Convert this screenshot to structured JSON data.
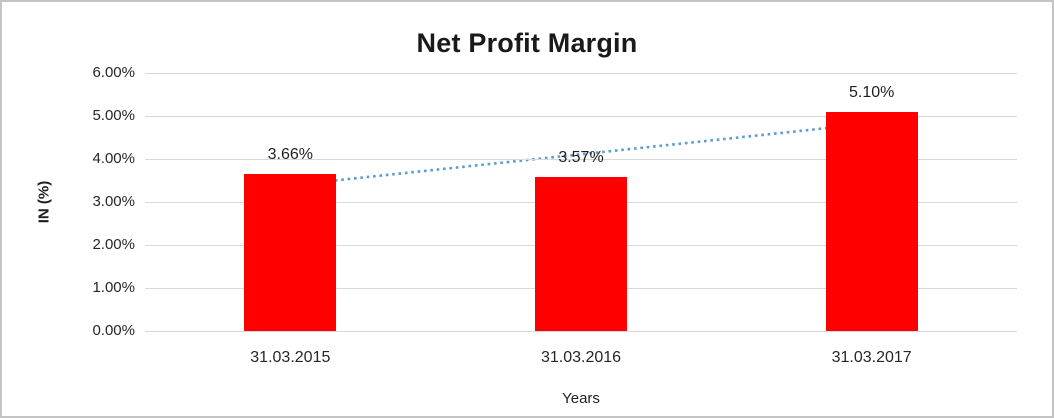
{
  "chart_data": {
    "type": "bar",
    "title": "Net Profit Margin",
    "xlabel": "Years",
    "ylabel": "IN (%)",
    "categories": [
      "31.03.2015",
      "31.03.2016",
      "31.03.2017"
    ],
    "values": [
      3.66,
      3.57,
      5.1
    ],
    "data_labels": [
      "3.66%",
      "3.57%",
      "5.10%"
    ],
    "yticks": {
      "values": [
        6,
        5,
        4,
        3,
        2,
        1,
        0
      ],
      "labels": [
        "6.00%",
        "5.00%",
        "4.00%",
        "3.00%",
        "2.00%",
        "1.00%",
        "0.00%"
      ]
    },
    "ylim": [
      0,
      6
    ],
    "grid": true,
    "legend": "none",
    "trendline": {
      "style": "dotted",
      "start_value": 3.39,
      "end_value": 4.83
    },
    "colors": {
      "bar": "#ff0000",
      "trendline": "#5b9bd5",
      "gridline": "#d9d9d9",
      "text": "#1f1f1f",
      "frame_border": "#c4c4c4"
    }
  }
}
